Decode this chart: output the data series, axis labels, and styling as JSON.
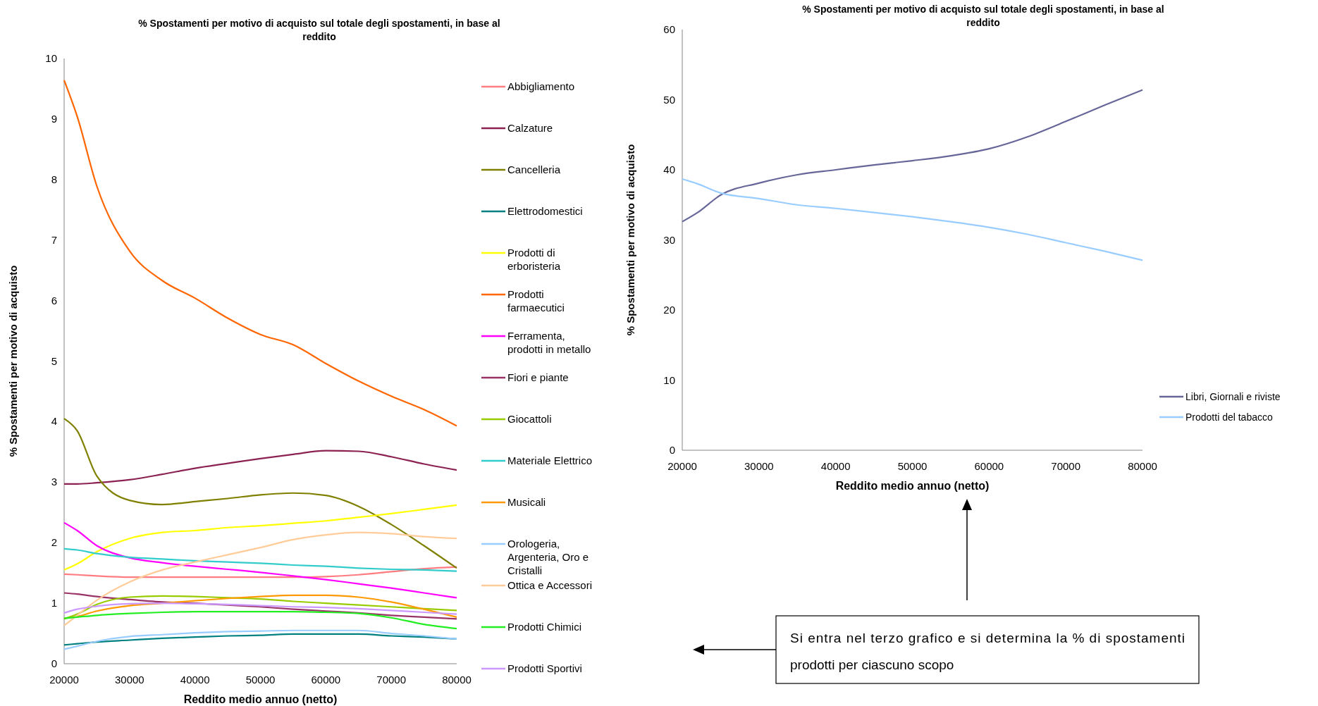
{
  "chart_data": [
    {
      "type": "line",
      "title": "% Spostamenti per motivo di acquisto sul totale degli spostamenti, in base al reddito",
      "xlabel": "Reddito medio annuo (netto)",
      "ylabel": "% Spostamenti per motivo di acquisto",
      "x": [
        20000,
        22000,
        25000,
        30000,
        35000,
        40000,
        45000,
        50000,
        55000,
        60000,
        65000,
        70000,
        75000,
        80000
      ],
      "xlim": [
        20000,
        80000
      ],
      "xticks": [
        20000,
        30000,
        40000,
        50000,
        60000,
        70000,
        80000
      ],
      "ylim": [
        0,
        10
      ],
      "yticks": [
        0,
        1,
        2,
        3,
        4,
        5,
        6,
        7,
        8,
        9,
        10
      ],
      "grid": false,
      "legend": "right",
      "marker": "none",
      "line_style": "solid",
      "series": [
        {
          "name": "Abbigliamento",
          "color": "#ff7c80",
          "values": [
            1.48,
            1.47,
            1.45,
            1.43,
            1.43,
            1.43,
            1.43,
            1.43,
            1.43,
            1.44,
            1.47,
            1.52,
            1.57,
            1.6
          ]
        },
        {
          "name": "Calzature",
          "color": "#8b2252",
          "values": [
            2.97,
            2.97,
            2.99,
            3.04,
            3.13,
            3.23,
            3.31,
            3.39,
            3.46,
            3.52,
            3.51,
            3.42,
            3.3,
            3.2
          ]
        },
        {
          "name": "Cancelleria",
          "color": "#808000",
          "values": [
            4.05,
            3.85,
            3.1,
            2.7,
            2.63,
            2.68,
            2.73,
            2.79,
            2.82,
            2.78,
            2.6,
            2.3,
            1.95,
            1.58
          ]
        },
        {
          "name": "Elettrodomestici",
          "color": "#008080",
          "values": [
            0.31,
            0.33,
            0.36,
            0.39,
            0.42,
            0.44,
            0.46,
            0.47,
            0.49,
            0.49,
            0.49,
            0.46,
            0.44,
            0.41
          ]
        },
        {
          "name": "Prodotti  di erboristeria",
          "color": "#ffff00",
          "values": [
            1.55,
            1.65,
            1.85,
            2.07,
            2.17,
            2.2,
            2.25,
            2.28,
            2.32,
            2.36,
            2.42,
            2.48,
            2.55,
            2.62
          ]
        },
        {
          "name": "Prodotti farmaecutici",
          "color": "#ff6600",
          "values": [
            9.64,
            9.04,
            7.89,
            6.82,
            6.33,
            6.04,
            5.71,
            5.44,
            5.27,
            4.96,
            4.67,
            4.42,
            4.2,
            3.93
          ]
        },
        {
          "name": "Ferramenta, prodotti in metallo",
          "color": "#ff00ff",
          "values": [
            2.33,
            2.2,
            1.95,
            1.75,
            1.67,
            1.61,
            1.56,
            1.51,
            1.45,
            1.39,
            1.32,
            1.25,
            1.17,
            1.09
          ]
        },
        {
          "name": "Fiori e piante",
          "color": "#993366",
          "values": [
            1.17,
            1.15,
            1.11,
            1.06,
            1.02,
            1.0,
            0.97,
            0.94,
            0.9,
            0.87,
            0.84,
            0.8,
            0.77,
            0.74
          ]
        },
        {
          "name": "Giocattoli",
          "color": "#99cc00",
          "values": [
            0.74,
            0.82,
            0.98,
            1.1,
            1.12,
            1.11,
            1.09,
            1.07,
            1.03,
            1.0,
            0.97,
            0.94,
            0.91,
            0.88
          ]
        },
        {
          "name": "Materiale Elettrico",
          "color": "#33cccc",
          "values": [
            1.9,
            1.88,
            1.82,
            1.76,
            1.73,
            1.7,
            1.68,
            1.66,
            1.63,
            1.61,
            1.58,
            1.56,
            1.55,
            1.53
          ]
        },
        {
          "name": "Musicali",
          "color": "#ff9900",
          "values": [
            0.75,
            0.78,
            0.87,
            0.96,
            1.0,
            1.04,
            1.08,
            1.11,
            1.13,
            1.13,
            1.1,
            1.02,
            0.9,
            0.77
          ]
        },
        {
          "name": "Orologeria, Argenteria, Oro e Cristalli",
          "color": "#99ccff",
          "values": [
            0.24,
            0.29,
            0.37,
            0.45,
            0.48,
            0.51,
            0.53,
            0.54,
            0.55,
            0.55,
            0.55,
            0.5,
            0.46,
            0.41
          ]
        },
        {
          "name": "Ottica e Accessori",
          "color": "#ffcc99",
          "values": [
            0.63,
            0.8,
            1.05,
            1.35,
            1.55,
            1.68,
            1.8,
            1.92,
            2.05,
            2.13,
            2.17,
            2.15,
            2.1,
            2.07
          ]
        },
        {
          "name": "Prodotti Chimici",
          "color": "#22ee22",
          "values": [
            0.75,
            0.77,
            0.8,
            0.83,
            0.85,
            0.86,
            0.86,
            0.86,
            0.86,
            0.85,
            0.83,
            0.76,
            0.65,
            0.58
          ]
        },
        {
          "name": "Prodotti Sportivi",
          "color": "#cc99ff",
          "values": [
            0.84,
            0.9,
            0.95,
            0.99,
            1.0,
            0.99,
            0.98,
            0.96,
            0.94,
            0.93,
            0.91,
            0.88,
            0.85,
            0.82
          ]
        }
      ]
    },
    {
      "type": "line",
      "title": "% Spostamenti per motivo di acquisto sul totale degli spostamenti, in base al reddito",
      "xlabel": "Reddito medio annuo (netto)",
      "ylabel": "% Spostamenti per motivo di acquisto",
      "x": [
        20000,
        22000,
        25000,
        30000,
        35000,
        40000,
        45000,
        50000,
        55000,
        60000,
        65000,
        70000,
        75000,
        80000
      ],
      "xlim": [
        20000,
        80000
      ],
      "xticks": [
        20000,
        30000,
        40000,
        50000,
        60000,
        70000,
        80000
      ],
      "ylim": [
        0,
        60
      ],
      "yticks": [
        0,
        10,
        20,
        30,
        40,
        50,
        60
      ],
      "grid": false,
      "legend": "right",
      "marker": "none",
      "line_style": "solid",
      "annotations": [
        "Si entra nel terzo grafico e si determina la % di spostamenti prodotti per ciascuno scopo"
      ],
      "series": [
        {
          "name": "Libri, Giornali e riviste",
          "color": "#666699",
          "values": [
            32.6,
            33.9,
            36.4,
            38.1,
            39.3,
            40.0,
            40.7,
            41.3,
            42.0,
            43.0,
            44.7,
            46.9,
            49.2,
            51.4
          ]
        },
        {
          "name": "Prodotti del tabacco",
          "color": "#99ccff",
          "values": [
            38.7,
            38.0,
            36.7,
            35.9,
            35.0,
            34.5,
            33.9,
            33.3,
            32.6,
            31.8,
            30.8,
            29.6,
            28.4,
            27.1
          ]
        }
      ]
    }
  ]
}
